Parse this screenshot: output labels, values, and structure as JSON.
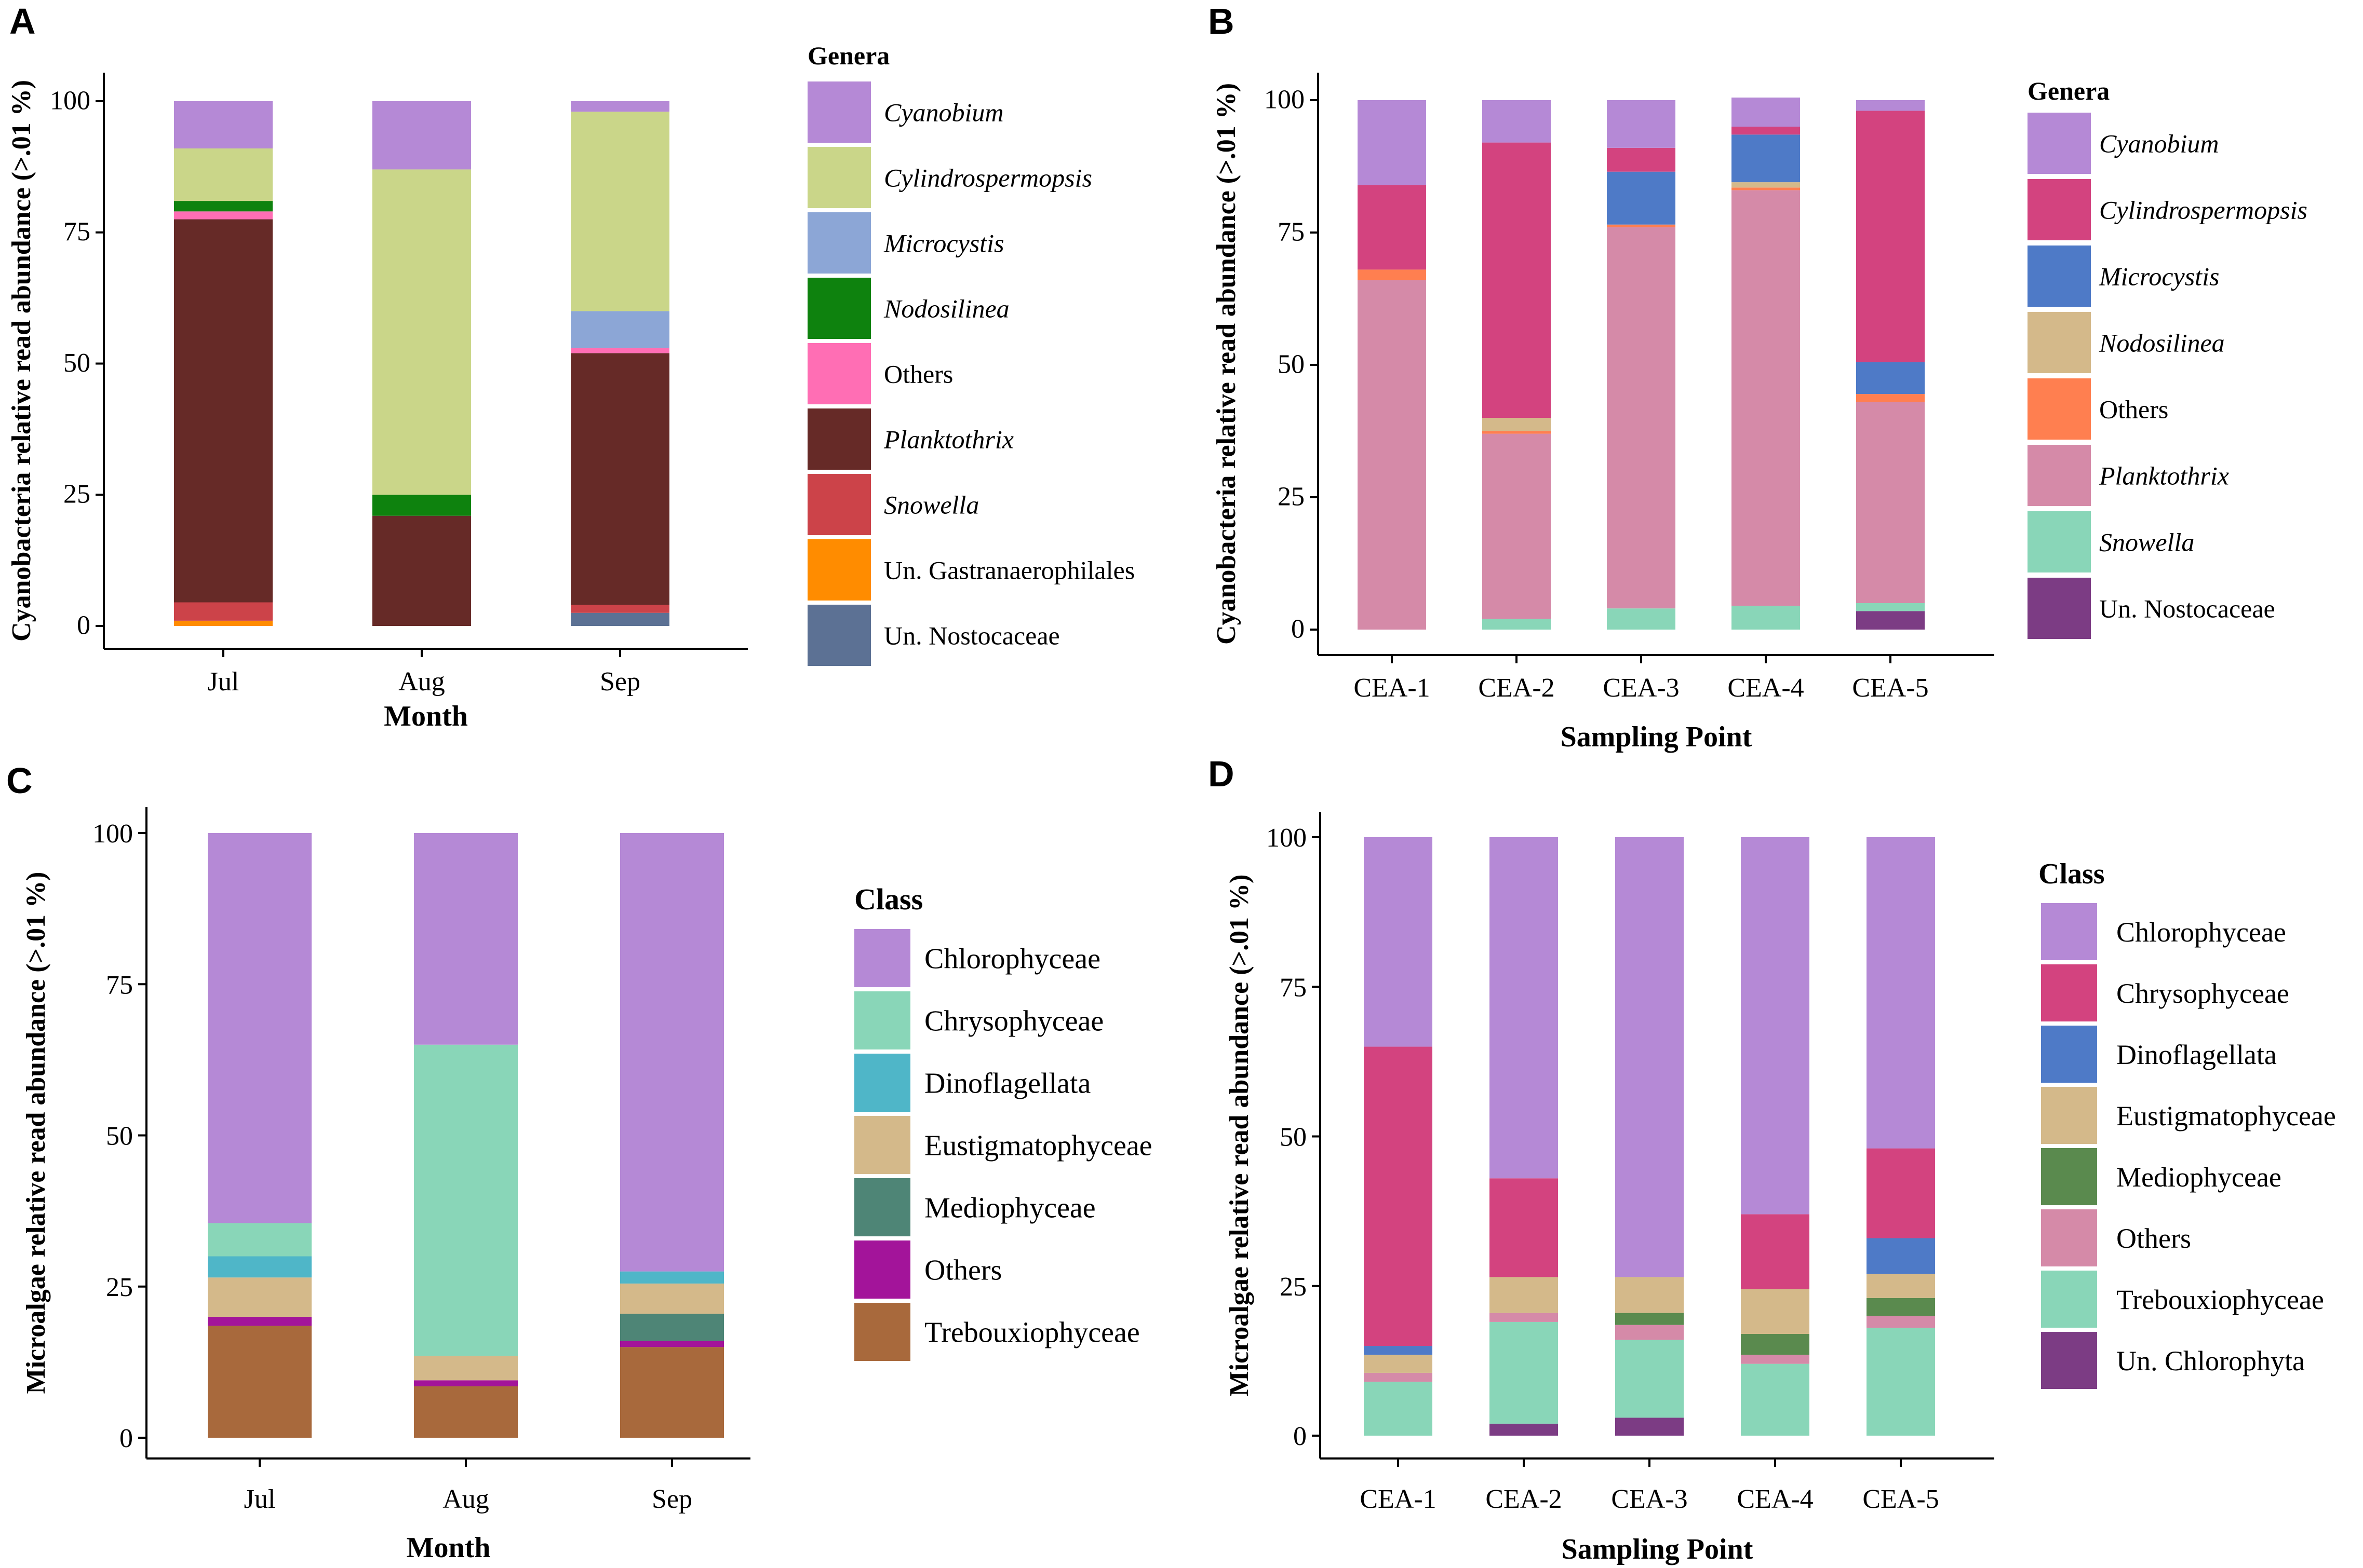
{
  "chart_data": [
    {
      "panel": "A",
      "type": "bar",
      "stacked": true,
      "categories": [
        "Jul",
        "Aug",
        "Sep"
      ],
      "xlabel": "Month",
      "ylabel": "Cyanobacteria relative read abundance (>.01 %)",
      "ylim": [
        0,
        100
      ],
      "yticks": [
        0,
        25,
        50,
        75,
        100
      ],
      "legend_title": "Genera",
      "series": [
        {
          "name": "Cyanobium",
          "italic": true,
          "color": "#b589d6",
          "values": [
            9,
            13,
            2
          ]
        },
        {
          "name": "Cylindrospermopsis",
          "italic": true,
          "color": "#cad689",
          "values": [
            10,
            62,
            38
          ]
        },
        {
          "name": "Microcystis",
          "italic": true,
          "color": "#8ca6d6",
          "values": [
            0,
            0,
            7
          ]
        },
        {
          "name": "Nodosilinea",
          "italic": true,
          "color": "#0e820e",
          "values": [
            2,
            4,
            0
          ]
        },
        {
          "name": "Others",
          "italic": false,
          "color": "#ff6eb4",
          "values": [
            1.5,
            0,
            1
          ]
        },
        {
          "name": "Planktothrix",
          "italic": true,
          "color": "#662a27",
          "values": [
            73,
            21,
            48
          ]
        },
        {
          "name": "Snowella",
          "italic": true,
          "color": "#cc4349",
          "values": [
            3.5,
            0,
            1.5
          ]
        },
        {
          "name": "Un. Gastranaerophilales",
          "italic": false,
          "color": "#ff8c00",
          "values": [
            1,
            0,
            0
          ]
        },
        {
          "name": "Un. Nostocaceae",
          "italic": false,
          "color": "#5c7194",
          "values": [
            0,
            0,
            2.5
          ]
        }
      ]
    },
    {
      "panel": "B",
      "type": "bar",
      "stacked": true,
      "categories": [
        "CEA-1",
        "CEA-2",
        "CEA-3",
        "CEA-4",
        "CEA-5"
      ],
      "xlabel": "Sampling Point",
      "ylabel": "Cyanobacteria relative read abundance (>.01 %)",
      "ylim": [
        0,
        100
      ],
      "yticks": [
        0,
        25,
        50,
        75,
        100
      ],
      "legend_title": "Genera",
      "series": [
        {
          "name": "Cyanobium",
          "italic": true,
          "color": "#b589d6",
          "values": [
            16,
            8,
            9,
            5.5,
            2
          ]
        },
        {
          "name": "Cylindrospermopsis",
          "italic": true,
          "color": "#d3437f",
          "values": [
            16,
            52,
            4.5,
            1.5,
            47.5
          ]
        },
        {
          "name": "Microcystis",
          "italic": true,
          "color": "#4e7ac7",
          "values": [
            0,
            0,
            10,
            9,
            6
          ]
        },
        {
          "name": "Nodosilinea",
          "italic": true,
          "color": "#d4b98a",
          "values": [
            0,
            2.5,
            0,
            1,
            0
          ]
        },
        {
          "name": "Others",
          "italic": false,
          "color": "#ff7f50",
          "values": [
            2,
            0.5,
            0.5,
            0.5,
            1.5
          ]
        },
        {
          "name": "Planktothrix",
          "italic": true,
          "color": "#d58aa8",
          "values": [
            66,
            35,
            72,
            78.5,
            38
          ]
        },
        {
          "name": "Snowella",
          "italic": true,
          "color": "#89d6b8",
          "values": [
            0,
            2,
            4,
            4.5,
            1.5
          ]
        },
        {
          "name": "Un. Nostocaceae",
          "italic": false,
          "color": "#7c3c84",
          "values": [
            0,
            0,
            0,
            0,
            3.5
          ]
        }
      ]
    },
    {
      "panel": "C",
      "type": "bar",
      "stacked": true,
      "categories": [
        "Jul",
        "Aug",
        "Sep"
      ],
      "xlabel": "Month",
      "ylabel": "Microalgae relative read abundance (>.01 %)",
      "ylim": [
        0,
        100
      ],
      "yticks": [
        0,
        25,
        50,
        75,
        100
      ],
      "legend_title": "Class",
      "series": [
        {
          "name": "Chlorophyceae",
          "italic": false,
          "color": "#b589d6",
          "values": [
            64.5,
            35,
            72.5
          ]
        },
        {
          "name": "Chrysophyceae",
          "italic": false,
          "color": "#89d6b8",
          "values": [
            5.5,
            51.5,
            0
          ]
        },
        {
          "name": "Dinoflagellata",
          "italic": false,
          "color": "#4fb6c8",
          "values": [
            3.5,
            0,
            2
          ]
        },
        {
          "name": "Eustigmatophyceae",
          "italic": false,
          "color": "#d4b98a",
          "values": [
            6.5,
            4,
            5
          ]
        },
        {
          "name": "Mediophyceae",
          "italic": false,
          "color": "#4e8576",
          "values": [
            0,
            0,
            4.5
          ]
        },
        {
          "name": "Others",
          "italic": false,
          "color": "#a3149a",
          "values": [
            1.5,
            1,
            1
          ]
        },
        {
          "name": "Trebouxiophyceae",
          "italic": false,
          "color": "#a8693c",
          "values": [
            18.5,
            8.5,
            15
          ]
        }
      ]
    },
    {
      "panel": "D",
      "type": "bar",
      "stacked": true,
      "categories": [
        "CEA-1",
        "CEA-2",
        "CEA-3",
        "CEA-4",
        "CEA-5"
      ],
      "xlabel": "Sampling Point",
      "ylabel": "Microalgae relative read abundance (>.01 %)",
      "ylim": [
        0,
        100
      ],
      "yticks": [
        0,
        25,
        50,
        75,
        100
      ],
      "legend_title": "Class",
      "series": [
        {
          "name": "Chlorophyceae",
          "italic": false,
          "color": "#b589d6",
          "values": [
            35,
            57,
            73.5,
            63,
            52
          ]
        },
        {
          "name": "Chrysophyceae",
          "italic": false,
          "color": "#d3437f",
          "values": [
            50,
            16.5,
            0,
            12.5,
            15
          ]
        },
        {
          "name": "Dinoflagellata",
          "italic": false,
          "color": "#4e7ac7",
          "values": [
            1.5,
            0,
            0,
            0,
            6
          ]
        },
        {
          "name": "Eustigmatophyceae",
          "italic": false,
          "color": "#d4b98a",
          "values": [
            3,
            6,
            6,
            7.5,
            4
          ]
        },
        {
          "name": "Mediophyceae",
          "italic": false,
          "color": "#5a8a4e",
          "values": [
            0,
            0,
            2,
            3.5,
            3
          ]
        },
        {
          "name": "Others",
          "italic": false,
          "color": "#d58aa8",
          "values": [
            1.5,
            1.5,
            2.5,
            1.5,
            2
          ]
        },
        {
          "name": "Trebouxiophyceae",
          "italic": false,
          "color": "#89d6b8",
          "values": [
            9,
            17,
            13,
            12,
            18
          ]
        },
        {
          "name": "Un. Chlorophyta",
          "italic": false,
          "color": "#7c3c84",
          "values": [
            0,
            2,
            3,
            0,
            0
          ]
        }
      ]
    }
  ]
}
